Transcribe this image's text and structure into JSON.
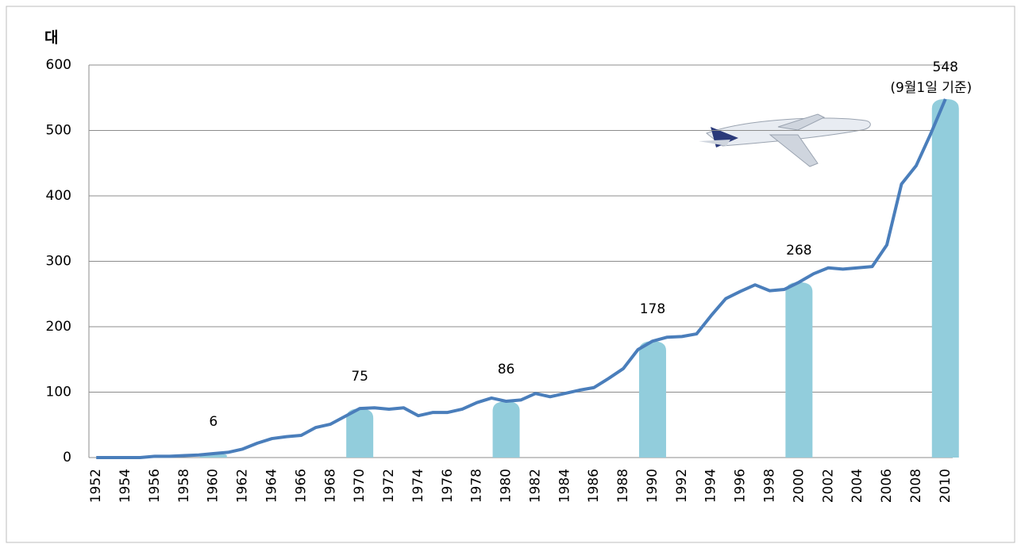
{
  "chart_data": {
    "type": "combo",
    "y_label": "대",
    "annotation": "(9월1일 기준)",
    "categories": [
      "1952",
      null,
      "1954",
      null,
      "1956",
      null,
      "1958",
      null,
      "1960",
      null,
      "1962",
      null,
      "1964",
      null,
      "1966",
      null,
      "1968",
      null,
      "1970",
      null,
      "1972",
      null,
      "1974",
      null,
      "1976",
      null,
      "1978",
      null,
      "1980",
      null,
      "1982",
      null,
      "1984",
      null,
      "1986",
      null,
      "1988",
      null,
      "1990",
      null,
      "1992",
      null,
      "1994",
      null,
      "1996",
      null,
      "1998",
      null,
      "2000",
      null,
      "2002",
      null,
      "2004",
      null,
      "2006",
      null,
      "2008",
      null,
      "2010"
    ],
    "series": [
      {
        "type": "bar",
        "color": "#92cddc",
        "values": [
          null,
          null,
          null,
          null,
          null,
          null,
          null,
          null,
          6,
          null,
          null,
          null,
          null,
          null,
          null,
          null,
          null,
          null,
          75,
          null,
          null,
          null,
          null,
          null,
          null,
          null,
          null,
          null,
          86,
          null,
          null,
          null,
          null,
          null,
          null,
          null,
          null,
          null,
          178,
          null,
          null,
          null,
          null,
          null,
          null,
          null,
          null,
          null,
          268,
          null,
          null,
          null,
          null,
          null,
          null,
          null,
          null,
          null,
          548
        ]
      },
      {
        "type": "line",
        "color": "#4a7ebb",
        "values": [
          0,
          0,
          0,
          0,
          2,
          2,
          3,
          4,
          6,
          8,
          13,
          22,
          29,
          32,
          34,
          46,
          51,
          63,
          75,
          76,
          74,
          76,
          64,
          69,
          69,
          74,
          84,
          91,
          86,
          88,
          98,
          93,
          98,
          103,
          107,
          121,
          136,
          165,
          178,
          184,
          185,
          189,
          217,
          243,
          254,
          264,
          255,
          257,
          268,
          281,
          290,
          288,
          290,
          292,
          325,
          418,
          446,
          495,
          548
        ]
      }
    ],
    "ylim": [
      0,
      600
    ],
    "yticks": [
      0,
      100,
      200,
      300,
      400,
      500,
      600
    ],
    "grid": true
  }
}
